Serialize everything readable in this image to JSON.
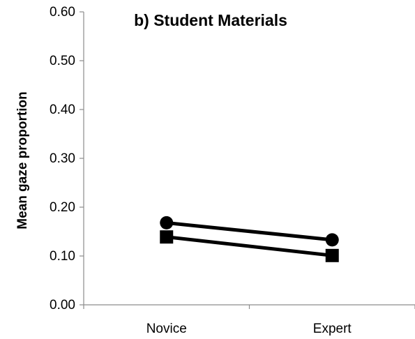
{
  "chart_data": {
    "type": "line",
    "title": "b) Student Materials",
    "xlabel": "",
    "ylabel": "Mean gaze proportion",
    "categories": [
      "Novice",
      "Expert"
    ],
    "ylim": [
      0,
      0.6
    ],
    "yticks": [
      "0.00",
      "0.10",
      "0.20",
      "0.30",
      "0.40",
      "0.50",
      "0.60"
    ],
    "grid": false,
    "series": [
      {
        "marker": "circle",
        "color": "#000000",
        "values": [
          0.168,
          0.133
        ]
      },
      {
        "marker": "square",
        "color": "#000000",
        "values": [
          0.139,
          0.101
        ]
      }
    ]
  }
}
